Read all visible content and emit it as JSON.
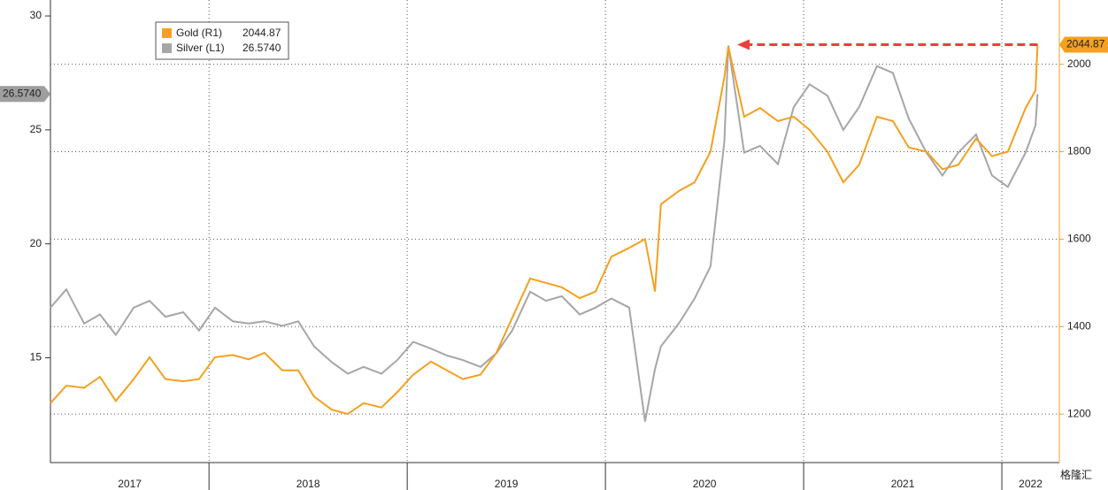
{
  "chart_data": {
    "type": "line",
    "x": [
      2017.2,
      2017.28,
      2017.37,
      2017.45,
      2017.53,
      2017.62,
      2017.7,
      2017.78,
      2017.87,
      2017.95,
      2018.03,
      2018.12,
      2018.2,
      2018.28,
      2018.37,
      2018.45,
      2018.53,
      2018.62,
      2018.7,
      2018.78,
      2018.87,
      2018.95,
      2019.03,
      2019.12,
      2019.2,
      2019.28,
      2019.37,
      2019.45,
      2019.53,
      2019.62,
      2019.7,
      2019.78,
      2019.87,
      2019.95,
      2020.03,
      2020.12,
      2020.2,
      2020.25,
      2020.28,
      2020.37,
      2020.45,
      2020.53,
      2020.6,
      2020.62,
      2020.7,
      2020.78,
      2020.87,
      2020.95,
      2021.03,
      2021.12,
      2021.2,
      2021.28,
      2021.37,
      2021.45,
      2021.53,
      2021.62,
      2021.7,
      2021.78,
      2021.87,
      2021.95,
      2022.03,
      2022.12,
      2022.17,
      2022.18
    ],
    "series": [
      {
        "name": "Gold (R1)",
        "color": "#f4a020",
        "axis": "y2",
        "value_label": "2044.87",
        "values": [
          1225,
          1265,
          1260,
          1285,
          1230,
          1280,
          1330,
          1280,
          1275,
          1280,
          1330,
          1335,
          1325,
          1340,
          1300,
          1300,
          1240,
          1210,
          1200,
          1225,
          1215,
          1250,
          1290,
          1320,
          1300,
          1280,
          1290,
          1340,
          1420,
          1510,
          1500,
          1490,
          1465,
          1480,
          1560,
          1580,
          1600,
          1480,
          1680,
          1710,
          1730,
          1800,
          1970,
          2040,
          1880,
          1900,
          1870,
          1880,
          1850,
          1800,
          1730,
          1770,
          1880,
          1870,
          1810,
          1800,
          1760,
          1770,
          1830,
          1790,
          1800,
          1900,
          1940,
          2044.87
        ]
      },
      {
        "name": "Silver (L1)",
        "color": "#a6a6a6",
        "value_label": "26.5740",
        "values": [
          17.2,
          18.0,
          16.5,
          16.9,
          16.0,
          17.2,
          17.5,
          16.8,
          17.0,
          16.2,
          17.2,
          16.6,
          16.5,
          16.6,
          16.4,
          16.6,
          15.5,
          14.8,
          14.3,
          14.6,
          14.3,
          14.9,
          15.7,
          15.4,
          15.1,
          14.9,
          14.6,
          15.2,
          16.2,
          17.9,
          17.5,
          17.7,
          16.9,
          17.2,
          17.6,
          17.2,
          12.2,
          14.5,
          15.5,
          16.5,
          17.6,
          19.0,
          24.5,
          28.7,
          24.0,
          24.3,
          23.5,
          26.0,
          27.0,
          26.5,
          25.0,
          26.0,
          27.8,
          27.5,
          25.5,
          24.0,
          23.0,
          24.0,
          24.8,
          23.0,
          22.5,
          24.0,
          25.2,
          26.574
        ]
      }
    ],
    "xlim": [
      2017.2,
      2022.29
    ],
    "xticks": [
      {
        "value": 2017,
        "label": "2017"
      },
      {
        "value": 2018,
        "label": "2018"
      },
      {
        "value": 2019,
        "label": "2019"
      },
      {
        "value": 2020,
        "label": "2020"
      },
      {
        "value": 2021,
        "label": "2021"
      },
      {
        "value": 2022,
        "label": "2022"
      }
    ],
    "ylim": [
      10.4,
      30.7
    ],
    "yticks": [
      15,
      20,
      25,
      30
    ],
    "y2lim": [
      1089,
      2147
    ],
    "y2ticks": [
      1200,
      1400,
      1600,
      1800,
      2000
    ],
    "grid": true,
    "watermark": "格隆汇"
  }
}
